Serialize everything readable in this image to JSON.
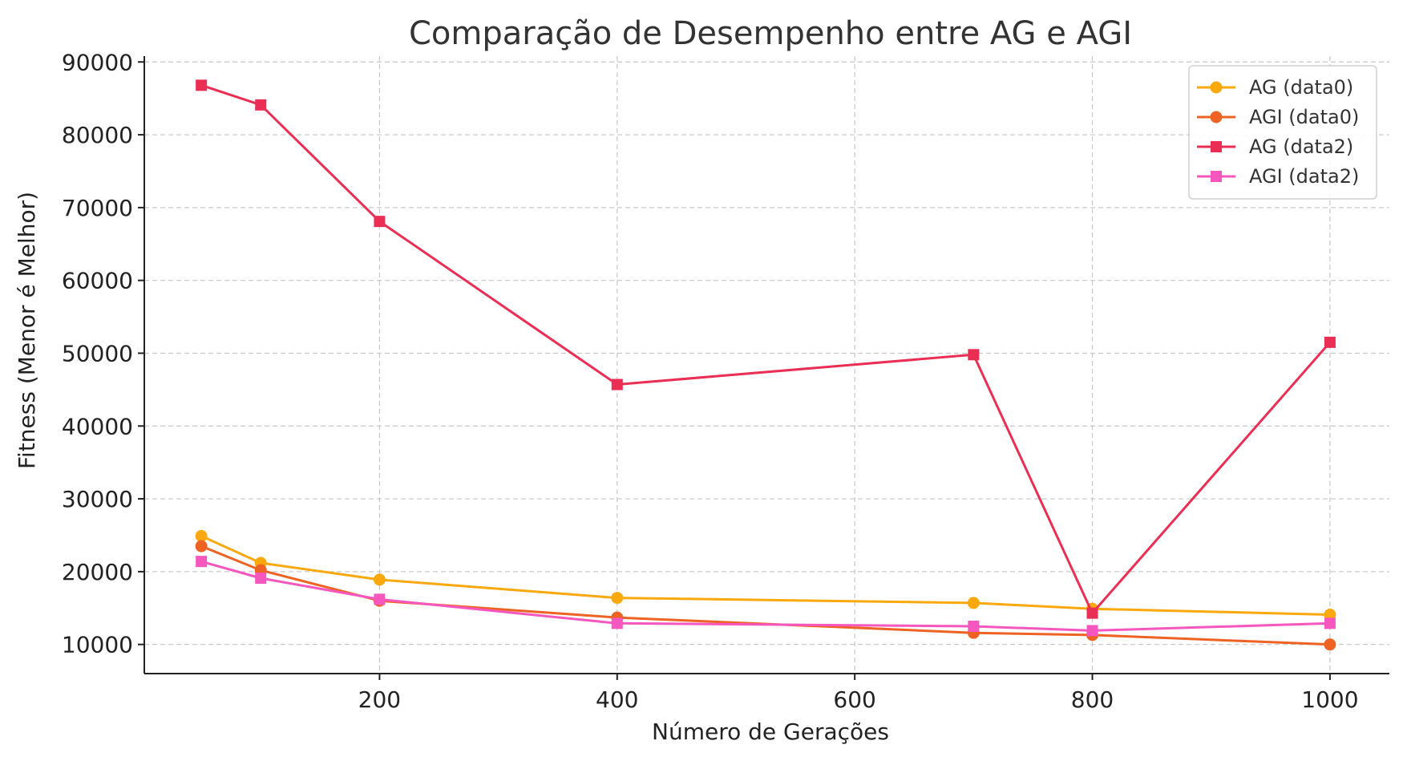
{
  "chart_data": {
    "type": "line",
    "title": "Comparação de Desempenho entre AG e AGI",
    "xlabel": "Número de Gerações",
    "ylabel": "Fitness (Menor é Melhor)",
    "x": [
      50,
      100,
      200,
      400,
      700,
      800,
      1000
    ],
    "xlim": [
      2,
      1050
    ],
    "ylim": [
      6000,
      90800
    ],
    "xticks": [
      200,
      400,
      600,
      800,
      1000
    ],
    "yticks": [
      10000,
      20000,
      30000,
      40000,
      50000,
      60000,
      70000,
      80000,
      90000
    ],
    "grid": true,
    "legend_position": "top-right",
    "series": [
      {
        "name": "AG (data0)",
        "color": "#F9A80E",
        "marker": "circle",
        "values": [
          24900,
          21200,
          18900,
          16400,
          15700,
          14900,
          14100
        ]
      },
      {
        "name": "AGI (data0)",
        "color": "#EE6323",
        "marker": "circle",
        "values": [
          23500,
          20200,
          16000,
          13700,
          11600,
          11300,
          10000
        ]
      },
      {
        "name": "AG (data2)",
        "color": "#EB2E54",
        "marker": "square",
        "values": [
          86800,
          84100,
          68100,
          45700,
          49800,
          14300,
          51500
        ]
      },
      {
        "name": "AGI (data2)",
        "color": "#F557BE",
        "marker": "square",
        "values": [
          21400,
          19100,
          16200,
          12900,
          12500,
          11900,
          12900
        ]
      }
    ]
  }
}
